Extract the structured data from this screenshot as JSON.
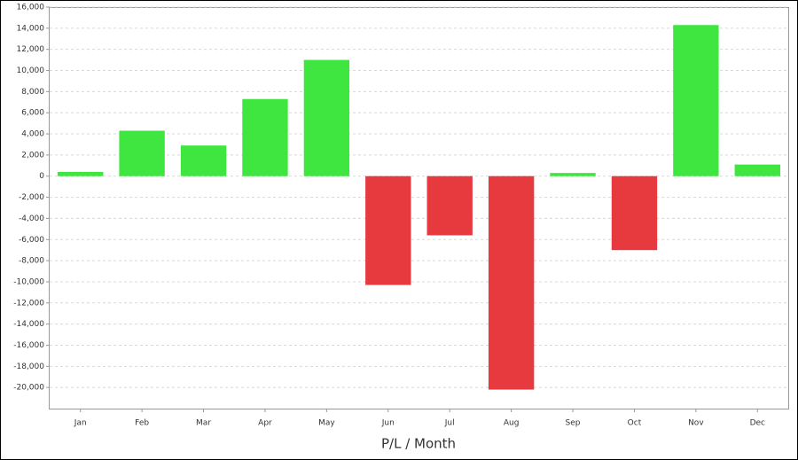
{
  "chart_data": {
    "type": "bar",
    "x_label": "P/L / Month",
    "categories": [
      "Jan",
      "Feb",
      "Mar",
      "Apr",
      "May",
      "Jun",
      "Jul",
      "Aug",
      "Sep",
      "Oct",
      "Nov",
      "Dec"
    ],
    "values": [
      400,
      4300,
      2900,
      7300,
      11000,
      -10300,
      -5600,
      -20200,
      300,
      -7000,
      14300,
      1100
    ],
    "positive_color": "#3fe63f",
    "negative_color": "#e63a3f",
    "ylim": [
      -22000,
      16000
    ],
    "yticks": [
      {
        "value": -20000,
        "label": "-20,000"
      },
      {
        "value": -18000,
        "label": "-18,000"
      },
      {
        "value": -16000,
        "label": "-16,000"
      },
      {
        "value": -14000,
        "label": "-14,000"
      },
      {
        "value": -12000,
        "label": "-12,000"
      },
      {
        "value": -10000,
        "label": "-10,000"
      },
      {
        "value": -8000,
        "label": "-8,000"
      },
      {
        "value": -6000,
        "label": "-6,000"
      },
      {
        "value": -4000,
        "label": "-4,000"
      },
      {
        "value": -2000,
        "label": "-2,000"
      },
      0,
      {
        "value": 2000,
        "label": "2,000"
      },
      {
        "value": 4000,
        "label": "4,000"
      },
      {
        "value": 6000,
        "label": "6,000"
      },
      {
        "value": 8000,
        "label": "8,000"
      },
      {
        "value": 10000,
        "label": "10,000"
      },
      {
        "value": 12000,
        "label": "12,000"
      },
      {
        "value": 14000,
        "label": "14,000"
      },
      {
        "value": 16000,
        "label": "16,000"
      }
    ],
    "grid": true
  }
}
